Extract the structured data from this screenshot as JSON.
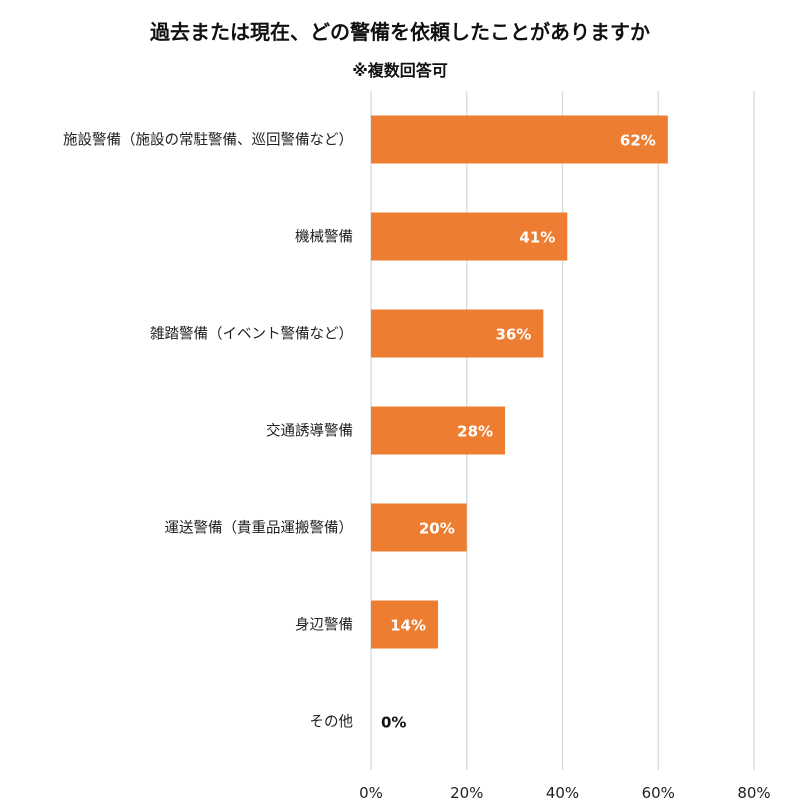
{
  "chart_data": {
    "type": "bar",
    "orientation": "horizontal",
    "title": "過去または現在、どの警備を依頼したことがありますか",
    "subtitle": "※複数回答可",
    "categories": [
      "施設警備（施設の常駐警備、巡回警備など）",
      "機械警備",
      "雑踏警備（イベント警備など）",
      "交通誘導警備",
      "運送警備（貴重品運搬警備）",
      "身辺警備",
      "その他"
    ],
    "values": [
      62,
      41,
      36,
      28,
      20,
      14,
      0
    ],
    "data_labels": [
      "62%",
      "41%",
      "36%",
      "28%",
      "20%",
      "14%",
      "0%"
    ],
    "xlim": [
      0,
      80
    ],
    "x_ticks": [
      0,
      20,
      40,
      60,
      80
    ],
    "x_tick_labels": [
      "0%",
      "20%",
      "40%",
      "60%",
      "80%"
    ],
    "grid": "vertical",
    "legend": "none",
    "bar_color": "#ED7D31",
    "grid_color": "#D9D9D9"
  }
}
